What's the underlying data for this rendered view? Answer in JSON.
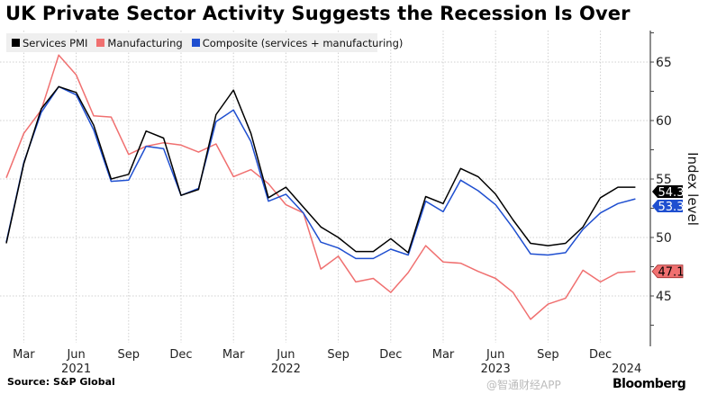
{
  "chart_data": {
    "type": "line",
    "title": "UK Private Sector Activity Suggests the Recession Is Over",
    "ylabel": "Index level",
    "xlabel": "",
    "ylim": [
      41,
      67.7
    ],
    "yticks": [
      45,
      50,
      55,
      60,
      65
    ],
    "grid": true,
    "legend_position": "top-left",
    "x_start": "2021-02",
    "x_end": "2024-02",
    "x": [
      "2021-02",
      "2021-03",
      "2021-04",
      "2021-05",
      "2021-06",
      "2021-07",
      "2021-08",
      "2021-09",
      "2021-10",
      "2021-11",
      "2021-12",
      "2022-01",
      "2022-02",
      "2022-03",
      "2022-04",
      "2022-05",
      "2022-06",
      "2022-07",
      "2022-08",
      "2022-09",
      "2022-10",
      "2022-11",
      "2022-12",
      "2023-01",
      "2023-02",
      "2023-03",
      "2023-04",
      "2023-05",
      "2023-06",
      "2023-07",
      "2023-08",
      "2023-09",
      "2023-10",
      "2023-11",
      "2023-12",
      "2024-01",
      "2024-02"
    ],
    "xtick_labels": [
      {
        "month": "2021-03",
        "label": "Mar"
      },
      {
        "month": "2021-06",
        "label": "Jun"
      },
      {
        "month": "2021-09",
        "label": "Sep"
      },
      {
        "month": "2021-12",
        "label": "Dec"
      },
      {
        "month": "2022-03",
        "label": "Mar"
      },
      {
        "month": "2022-06",
        "label": "Jun"
      },
      {
        "month": "2022-09",
        "label": "Sep"
      },
      {
        "month": "2022-12",
        "label": "Dec"
      },
      {
        "month": "2023-03",
        "label": "Mar"
      },
      {
        "month": "2023-06",
        "label": "Jun"
      },
      {
        "month": "2023-09",
        "label": "Sep"
      },
      {
        "month": "2023-12",
        "label": "Dec"
      }
    ],
    "year_labels": [
      {
        "month": "2021-06",
        "label": "2021"
      },
      {
        "month": "2022-06",
        "label": "2022"
      },
      {
        "month": "2023-06",
        "label": "2023"
      },
      {
        "month": "2024-01.5",
        "label": "2024"
      }
    ],
    "series": [
      {
        "name": "Services PMI",
        "color": "#000000",
        "label_text_color": "#ffffff",
        "last_label": "54.3",
        "values": [
          49.5,
          56.3,
          61.0,
          62.9,
          62.4,
          59.6,
          55.0,
          55.4,
          59.1,
          58.5,
          53.6,
          54.1,
          60.5,
          62.6,
          58.9,
          53.4,
          54.3,
          52.6,
          50.9,
          50.0,
          48.8,
          48.8,
          49.9,
          48.7,
          53.5,
          52.9,
          55.9,
          55.2,
          53.7,
          51.5,
          49.5,
          49.3,
          49.5,
          50.9,
          53.4,
          54.3,
          54.3
        ]
      },
      {
        "name": "Manufacturing",
        "color": "#f07070",
        "label_text_color": "#000000",
        "last_label": "47.1",
        "values": [
          55.1,
          58.9,
          60.9,
          65.6,
          63.9,
          60.4,
          60.3,
          57.1,
          57.8,
          58.1,
          57.9,
          57.3,
          58.0,
          55.2,
          55.8,
          54.6,
          52.8,
          52.1,
          47.3,
          48.4,
          46.2,
          46.5,
          45.3,
          47.0,
          49.3,
          47.9,
          47.8,
          47.1,
          46.5,
          45.3,
          43.0,
          44.3,
          44.8,
          47.2,
          46.2,
          47.0,
          47.1
        ]
      },
      {
        "name": "Composite (services + manufacturing)",
        "color": "#1f4fd0",
        "label_text_color": "#ffffff",
        "last_label": "53.3",
        "values": [
          49.6,
          56.4,
          60.7,
          62.9,
          62.2,
          59.2,
          54.8,
          54.9,
          57.8,
          57.6,
          53.6,
          54.2,
          59.9,
          60.9,
          58.2,
          53.1,
          53.7,
          52.1,
          49.6,
          49.1,
          48.2,
          48.2,
          49.0,
          48.5,
          53.1,
          52.2,
          54.9,
          54.0,
          52.8,
          50.8,
          48.6,
          48.5,
          48.7,
          50.7,
          52.1,
          52.9,
          53.3
        ]
      }
    ]
  },
  "footer": {
    "source": "Source: S&P Global",
    "brand": "Bloomberg",
    "watermark": "@智通财经APP"
  }
}
